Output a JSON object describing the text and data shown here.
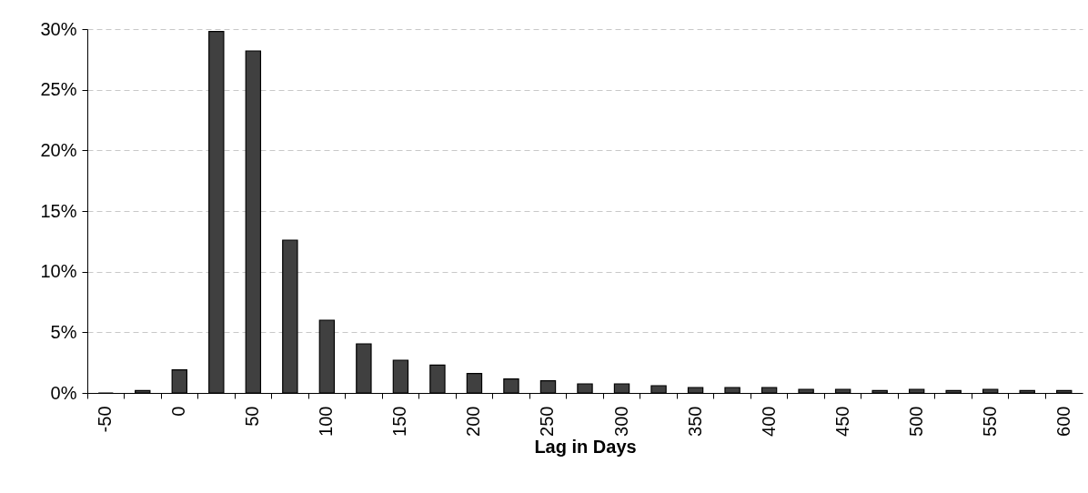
{
  "chart_data": {
    "type": "bar",
    "xlabel": "Lag in Days",
    "categories": [
      "-50",
      null,
      "0",
      null,
      "50",
      null,
      "100",
      null,
      "150",
      null,
      "200",
      null,
      "250",
      null,
      "300",
      null,
      "350",
      null,
      "400",
      null,
      "450",
      null,
      "500",
      null,
      "550",
      null,
      "600"
    ],
    "values": [
      0,
      0.2,
      1.9,
      29.8,
      28.2,
      12.6,
      6.0,
      4.05,
      2.7,
      2.3,
      1.6,
      1.15,
      1.0,
      0.75,
      0.75,
      0.6,
      0.45,
      0.45,
      0.45,
      0.3,
      0.3,
      0.2,
      0.3,
      0.2,
      0.3,
      0.2,
      0.2
    ],
    "color": "#404040",
    "ylim": [
      0,
      30
    ],
    "yticks": [
      {
        "value": 0,
        "label": "0%"
      },
      {
        "value": 5,
        "label": "5%"
      },
      {
        "value": 10,
        "label": "10%"
      },
      {
        "value": 15,
        "label": "15%"
      },
      {
        "value": 20,
        "label": "20%"
      },
      {
        "value": 25,
        "label": "25%"
      },
      {
        "value": 30,
        "label": "30%"
      }
    ],
    "grid": "y"
  }
}
